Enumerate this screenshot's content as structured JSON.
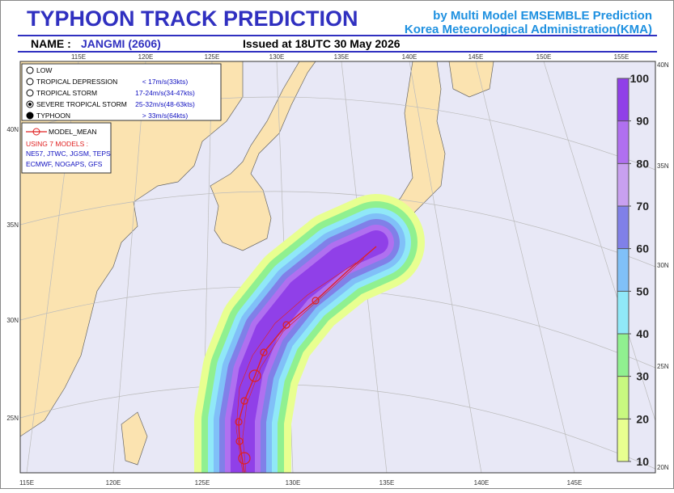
{
  "header": {
    "title": "TYPHOON  TRACK  PREDICTION",
    "subtitle1": "by Multi Model EMSEMBLE Prediction",
    "subtitle2": "Korea Meteorological Administration(KMA)",
    "name_label": "NAME :",
    "name": "JANGMI (2606)",
    "issued": "Issued at  18UTC 30 May 2026"
  },
  "map": {
    "top_lon": [
      "115E",
      "120E",
      "125E",
      "130E",
      "135E",
      "140E",
      "145E",
      "150E",
      "155E"
    ],
    "bottom_lon": [
      "115E",
      "120E",
      "125E",
      "130E",
      "135E",
      "140E",
      "145E"
    ],
    "left_lat": [
      "40N",
      "35N",
      "30N",
      "25N"
    ],
    "right_lat": [
      "40N",
      "35N",
      "30N",
      "25N",
      "20N"
    ]
  },
  "legend": {
    "items": [
      {
        "label": "LOW",
        "range": ""
      },
      {
        "label": "TROPICAL DEPRESSION",
        "range": "< 17m/s(33kts)"
      },
      {
        "label": "TROPICAL STORM",
        "range": "17-24m/s(34-47kts)"
      },
      {
        "label": "SEVERE TROPICAL STORM",
        "range": "25-32m/s(48-63kts)"
      },
      {
        "label": "TYPHOON",
        "range": "> 33m/s(64kts)"
      }
    ],
    "model_mean": "MODEL_MEAN",
    "using": "USING 7 MODELS :",
    "models1": "NE57, JTWC, JGSM, TEPS",
    "models2": "ECMWF, NOGAPS, GFS"
  },
  "colorbar": {
    "lim": [
      10,
      100
    ],
    "ticks": [
      10,
      20,
      30,
      40,
      50,
      60,
      70,
      80,
      90,
      100
    ],
    "colors": [
      "#e8ff90",
      "#c8f880",
      "#90f090",
      "#90e8f8",
      "#80c0f8",
      "#8080e8",
      "#c8a0f0",
      "#b070f0",
      "#9040e8"
    ]
  }
}
